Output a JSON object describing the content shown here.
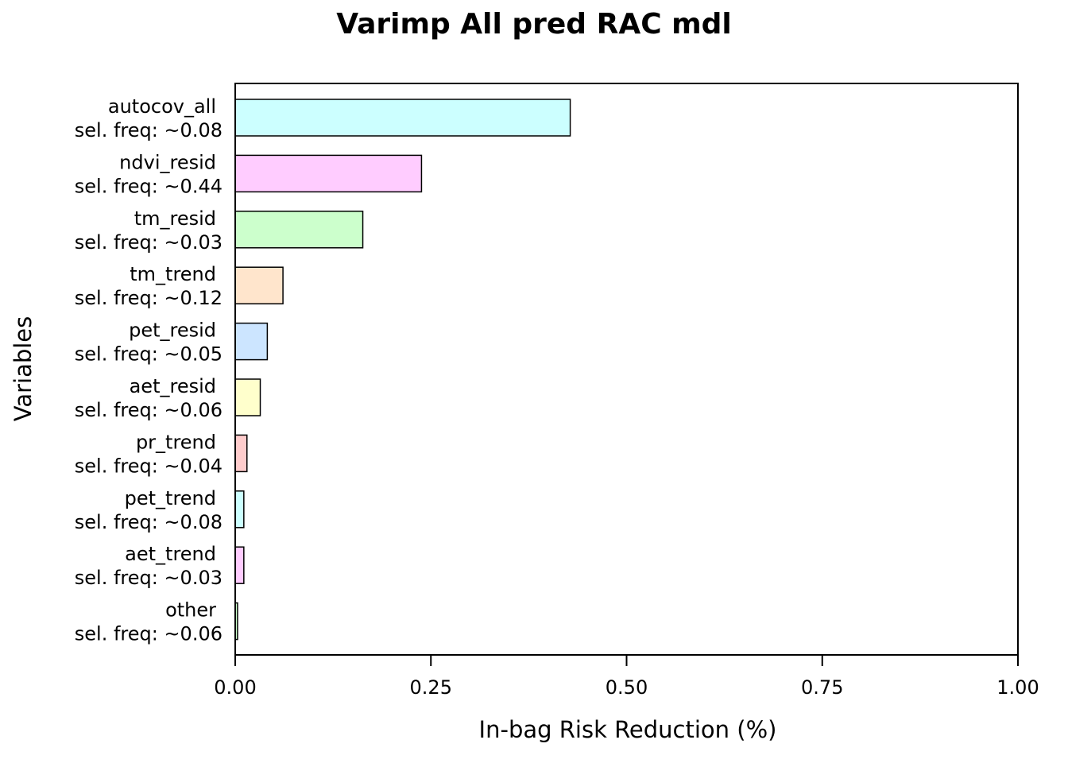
{
  "chart_data": {
    "type": "bar",
    "orientation": "horizontal",
    "title": "Varimp All pred RAC mdl",
    "xlabel": "In-bag Risk Reduction (%)",
    "ylabel": "Variables",
    "xlim": [
      0,
      1
    ],
    "xticks": [
      "0.00",
      "0.25",
      "0.50",
      "0.75",
      "1.00"
    ],
    "grid": false,
    "categories": [
      {
        "name": "autocov_all",
        "freq_label": "sel. freq: ~0.08",
        "value": 0.428,
        "color": "#CCFFFF"
      },
      {
        "name": "ndvi_resid",
        "freq_label": "sel. freq: ~0.44",
        "value": 0.238,
        "color": "#FFCCFF"
      },
      {
        "name": "tm_resid",
        "freq_label": "sel. freq: ~0.03",
        "value": 0.163,
        "color": "#CCFFCC"
      },
      {
        "name": "tm_trend",
        "freq_label": "sel. freq: ~0.12",
        "value": 0.061,
        "color": "#FFE5CC"
      },
      {
        "name": "pet_resid",
        "freq_label": "sel. freq: ~0.05",
        "value": 0.041,
        "color": "#CCE5FF"
      },
      {
        "name": "aet_resid",
        "freq_label": "sel. freq: ~0.06",
        "value": 0.032,
        "color": "#FFFFCC"
      },
      {
        "name": "pr_trend",
        "freq_label": "sel. freq: ~0.04",
        "value": 0.015,
        "color": "#FFCCCC"
      },
      {
        "name": "pet_trend",
        "freq_label": "sel. freq: ~0.08",
        "value": 0.011,
        "color": "#CCFFFF"
      },
      {
        "name": "aet_trend",
        "freq_label": "sel. freq: ~0.03",
        "value": 0.011,
        "color": "#FFCCFF"
      },
      {
        "name": "other",
        "freq_label": "sel. freq: ~0.06",
        "value": 0.003,
        "color": "#CCFFCC"
      }
    ]
  }
}
